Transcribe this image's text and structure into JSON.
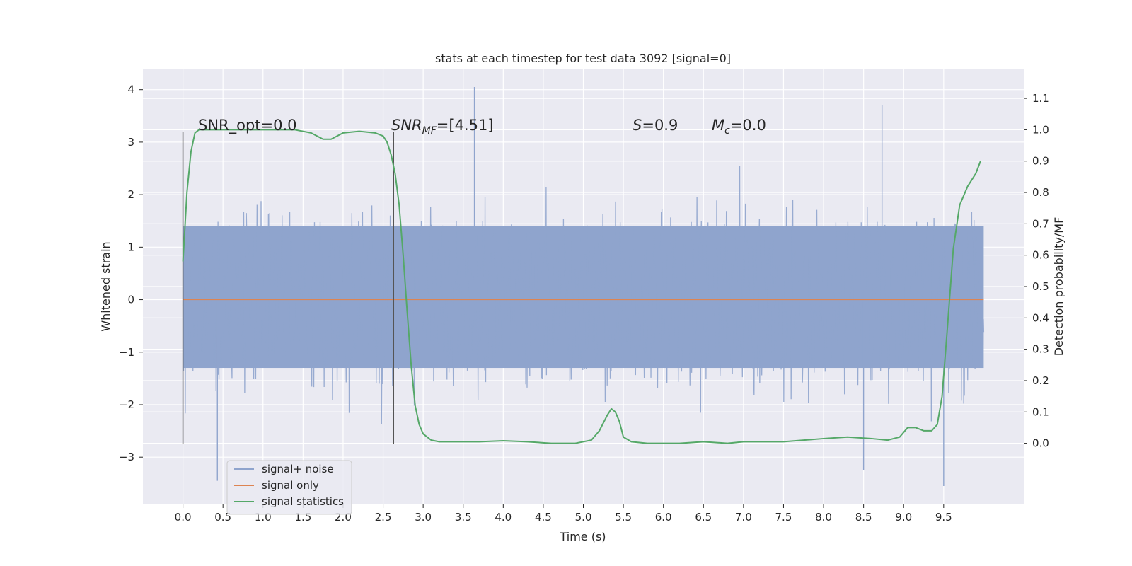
{
  "chart_data": {
    "type": "line",
    "title": "stats at each timestep for test data 3092 [signal=0]",
    "xlabel": "Time (s)",
    "ylabel": "Whitened strain",
    "ylabel_right": "Detection probability/MF",
    "xlim": [
      -0.5,
      10.5
    ],
    "ylim": [
      -3.9,
      4.4
    ],
    "ylim_right": [
      -0.195,
      1.195
    ],
    "x_ticks": [
      "0.0",
      "0.5",
      "1.0",
      "1.5",
      "2.0",
      "2.5",
      "3.0",
      "3.5",
      "4.0",
      "4.5",
      "5.0",
      "5.5",
      "6.0",
      "6.5",
      "7.0",
      "7.5",
      "8.0",
      "8.5",
      "9.0",
      "9.5"
    ],
    "y_ticks": [
      "4",
      "3",
      "2",
      "1",
      "0",
      "−1",
      "−2",
      "−3"
    ],
    "y_right_ticks": [
      "1.1",
      "1.0",
      "0.9",
      "0.8",
      "0.7",
      "0.6",
      "0.5",
      "0.4",
      "0.3",
      "0.2",
      "0.1",
      "0.0"
    ],
    "grid": true,
    "legend_position": "lower-left",
    "annotations": {
      "snr_opt": "SNR_opt=0.0",
      "snr_mf_sym": "SNR",
      "snr_mf_sub": "MF",
      "snr_mf_val": "=[4.51]",
      "s_sym": "S",
      "s_val": "=0.9",
      "mc_sym": "M",
      "mc_sub": "c",
      "mc_val": "=0.0"
    },
    "markers": [
      {
        "x": 0.0,
        "y_top": 3.2,
        "y_bottom": -2.75
      },
      {
        "x": 2.63,
        "y_top": 3.2,
        "y_bottom": -2.75
      }
    ],
    "series": [
      {
        "name": "signal+ noise",
        "color": "#8fa4cd",
        "x_range": [
          0,
          10
        ],
        "core_band": [
          -1.3,
          1.4
        ],
        "min": -3.55,
        "max": 4.05
      },
      {
        "name": "signal only",
        "color": "#dd8452",
        "x": [
          0,
          10
        ],
        "y": [
          0,
          0
        ]
      },
      {
        "name": "signal statistics",
        "color": "#55a868",
        "axis": "right",
        "x": [
          0.0,
          0.05,
          0.1,
          0.15,
          0.2,
          0.3,
          0.5,
          0.8,
          1.1,
          1.4,
          1.6,
          1.75,
          1.85,
          2.0,
          2.2,
          2.4,
          2.5,
          2.55,
          2.6,
          2.65,
          2.7,
          2.75,
          2.8,
          2.85,
          2.9,
          2.95,
          3.0,
          3.05,
          3.1,
          3.2,
          3.4,
          3.7,
          4.0,
          4.3,
          4.6,
          4.9,
          5.1,
          5.2,
          5.3,
          5.35,
          5.4,
          5.45,
          5.5,
          5.6,
          5.8,
          6.0,
          6.2,
          6.5,
          6.8,
          7.0,
          7.5,
          8.0,
          8.3,
          8.6,
          8.8,
          8.95,
          9.05,
          9.15,
          9.25,
          9.35,
          9.42,
          9.48,
          9.55,
          9.62,
          9.7,
          9.8,
          9.9,
          9.96
        ],
        "y": [
          0.58,
          0.8,
          0.93,
          0.99,
          1.0,
          1.0,
          1.0,
          1.0,
          1.0,
          1.0,
          0.99,
          0.97,
          0.97,
          0.99,
          0.995,
          0.99,
          0.98,
          0.96,
          0.92,
          0.86,
          0.76,
          0.6,
          0.42,
          0.25,
          0.12,
          0.06,
          0.03,
          0.02,
          0.01,
          0.005,
          0.005,
          0.005,
          0.008,
          0.005,
          0.0,
          0.0,
          0.01,
          0.04,
          0.09,
          0.11,
          0.1,
          0.07,
          0.02,
          0.005,
          0.0,
          0.0,
          0.0,
          0.005,
          0.0,
          0.005,
          0.005,
          0.015,
          0.02,
          0.015,
          0.01,
          0.02,
          0.05,
          0.05,
          0.04,
          0.04,
          0.06,
          0.15,
          0.38,
          0.62,
          0.76,
          0.82,
          0.86,
          0.9
        ]
      }
    ]
  }
}
